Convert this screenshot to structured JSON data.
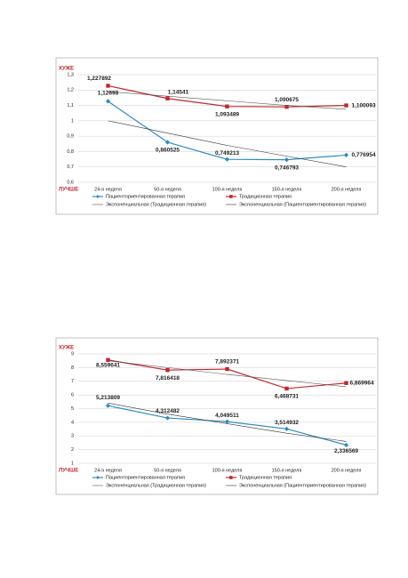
{
  "chart_data": [
    {
      "type": "line",
      "y_top_label": "ХУЖЕ",
      "y_bottom_label": "ЛУЧШЕ",
      "categories": [
        "24-я неделя",
        "50-я неделя",
        "100-я неделя",
        "150-я неделя",
        "200-я неделя"
      ],
      "ylim": [
        0.6,
        1.3
      ],
      "yticks": [
        {
          "value": 0.6,
          "label": "0,6"
        },
        {
          "value": 0.7,
          "label": "0,7"
        },
        {
          "value": 0.8,
          "label": "0,8"
        },
        {
          "value": 0.9,
          "label": "0,9"
        },
        1,
        {
          "value": 1.1,
          "label": "1,1"
        },
        {
          "value": 1.2,
          "label": "1,2"
        },
        {
          "value": 1.3,
          "label": "1,3"
        }
      ],
      "grid": true,
      "series": [
        {
          "name": "Пациенториентированная терапия",
          "color": "#2e8bc0",
          "marker": "diamond",
          "values": [
            1.12698,
            0.860525,
            0.749213,
            0.746793,
            0.776954
          ],
          "value_labels": [
            "1,12698",
            "0,860525",
            "0,749213",
            "0,746793",
            "0,776954"
          ]
        },
        {
          "name": "Традиционная терапия",
          "color": "#c0282d",
          "marker": "square",
          "values": [
            1.227892,
            1.14541,
            1.093489,
            1.090675,
            1.100093
          ],
          "value_labels": [
            "1,227892",
            "1,14541",
            "1,093489",
            "1,090675",
            "1,100093"
          ]
        },
        {
          "name": "Экспоненциальная (Традиционная терапия)",
          "color": "#555555",
          "marker": "none",
          "values": [
            1.19,
            1.16,
            1.13,
            1.1,
            1.075
          ]
        },
        {
          "name": "Экспоненциальная (Пациенториентированная терапия)",
          "color": "#333333",
          "marker": "none",
          "values": [
            1.0,
            0.92,
            0.84,
            0.77,
            0.7
          ]
        }
      ]
    },
    {
      "type": "line",
      "y_top_label": "ХУЖЕ",
      "y_bottom_label": "ЛУЧШЕ",
      "categories": [
        "24-я неделя",
        "50-я неделя",
        "100-я неделя",
        "150-я неделя",
        "200-я неделя"
      ],
      "ylim": [
        1,
        9
      ],
      "yticks": [
        1,
        2,
        3,
        4,
        5,
        6,
        7,
        8,
        9
      ],
      "grid": true,
      "series": [
        {
          "name": "Пациенториентированная терапия",
          "color": "#2e8bc0",
          "marker": "diamond",
          "values": [
            5.213809,
            4.312482,
            4.049511,
            3.514932,
            2.336569
          ],
          "value_labels": [
            "5,213809",
            "4,312482",
            "4,049511",
            "3,514932",
            "2,336569"
          ]
        },
        {
          "name": "Традиционная терапия",
          "color": "#c0282d",
          "marker": "square",
          "values": [
            8.559641,
            7.816418,
            7.892371,
            6.468731,
            6.869964
          ],
          "value_labels": [
            "8,559641",
            "7,816418",
            "7,892371",
            "6,468731",
            "6,869964"
          ]
        },
        {
          "name": "Экспоненциальная (Традиционная терапия)",
          "color": "#555555",
          "marker": "none",
          "values": [
            8.5,
            8.0,
            7.5,
            7.05,
            6.6
          ]
        },
        {
          "name": "Экспоненциальная (Пациенториентированная терапия)",
          "color": "#333333",
          "marker": "none",
          "values": [
            5.4,
            4.6,
            3.9,
            3.2,
            2.6
          ]
        }
      ]
    }
  ]
}
